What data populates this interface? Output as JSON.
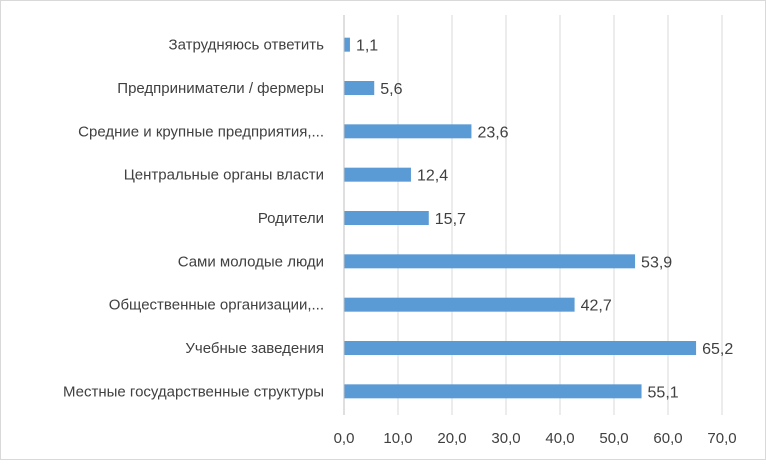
{
  "chart_data": {
    "type": "bar",
    "orientation": "horizontal",
    "categories": [
      "Затрудняюсь ответить",
      "Предприниматели / фермеры",
      "Средние и крупные предприятия,...",
      "Центральные органы власти",
      "Родители",
      "Сами молодые люди",
      "Общественные организации,...",
      "Учебные заведения",
      "Местные государственные структуры"
    ],
    "values": [
      1.1,
      5.6,
      23.6,
      12.4,
      15.7,
      53.9,
      42.7,
      65.2,
      55.1
    ],
    "value_labels": [
      "1,1",
      "5,6",
      "23,6",
      "12,4",
      "15,7",
      "53,9",
      "42,7",
      "65,2",
      "55,1"
    ],
    "x_ticks": [
      "0,0",
      "10,0",
      "20,0",
      "30,0",
      "40,0",
      "50,0",
      "60,0",
      "70,0"
    ],
    "xlim": [
      0,
      70
    ],
    "xlabel": "",
    "ylabel": "",
    "title": "",
    "grid": "vertical",
    "legend": "none",
    "colors": {
      "bar": "#5b9bd5",
      "grid": "#d9d9d9",
      "text": "#404040"
    }
  }
}
